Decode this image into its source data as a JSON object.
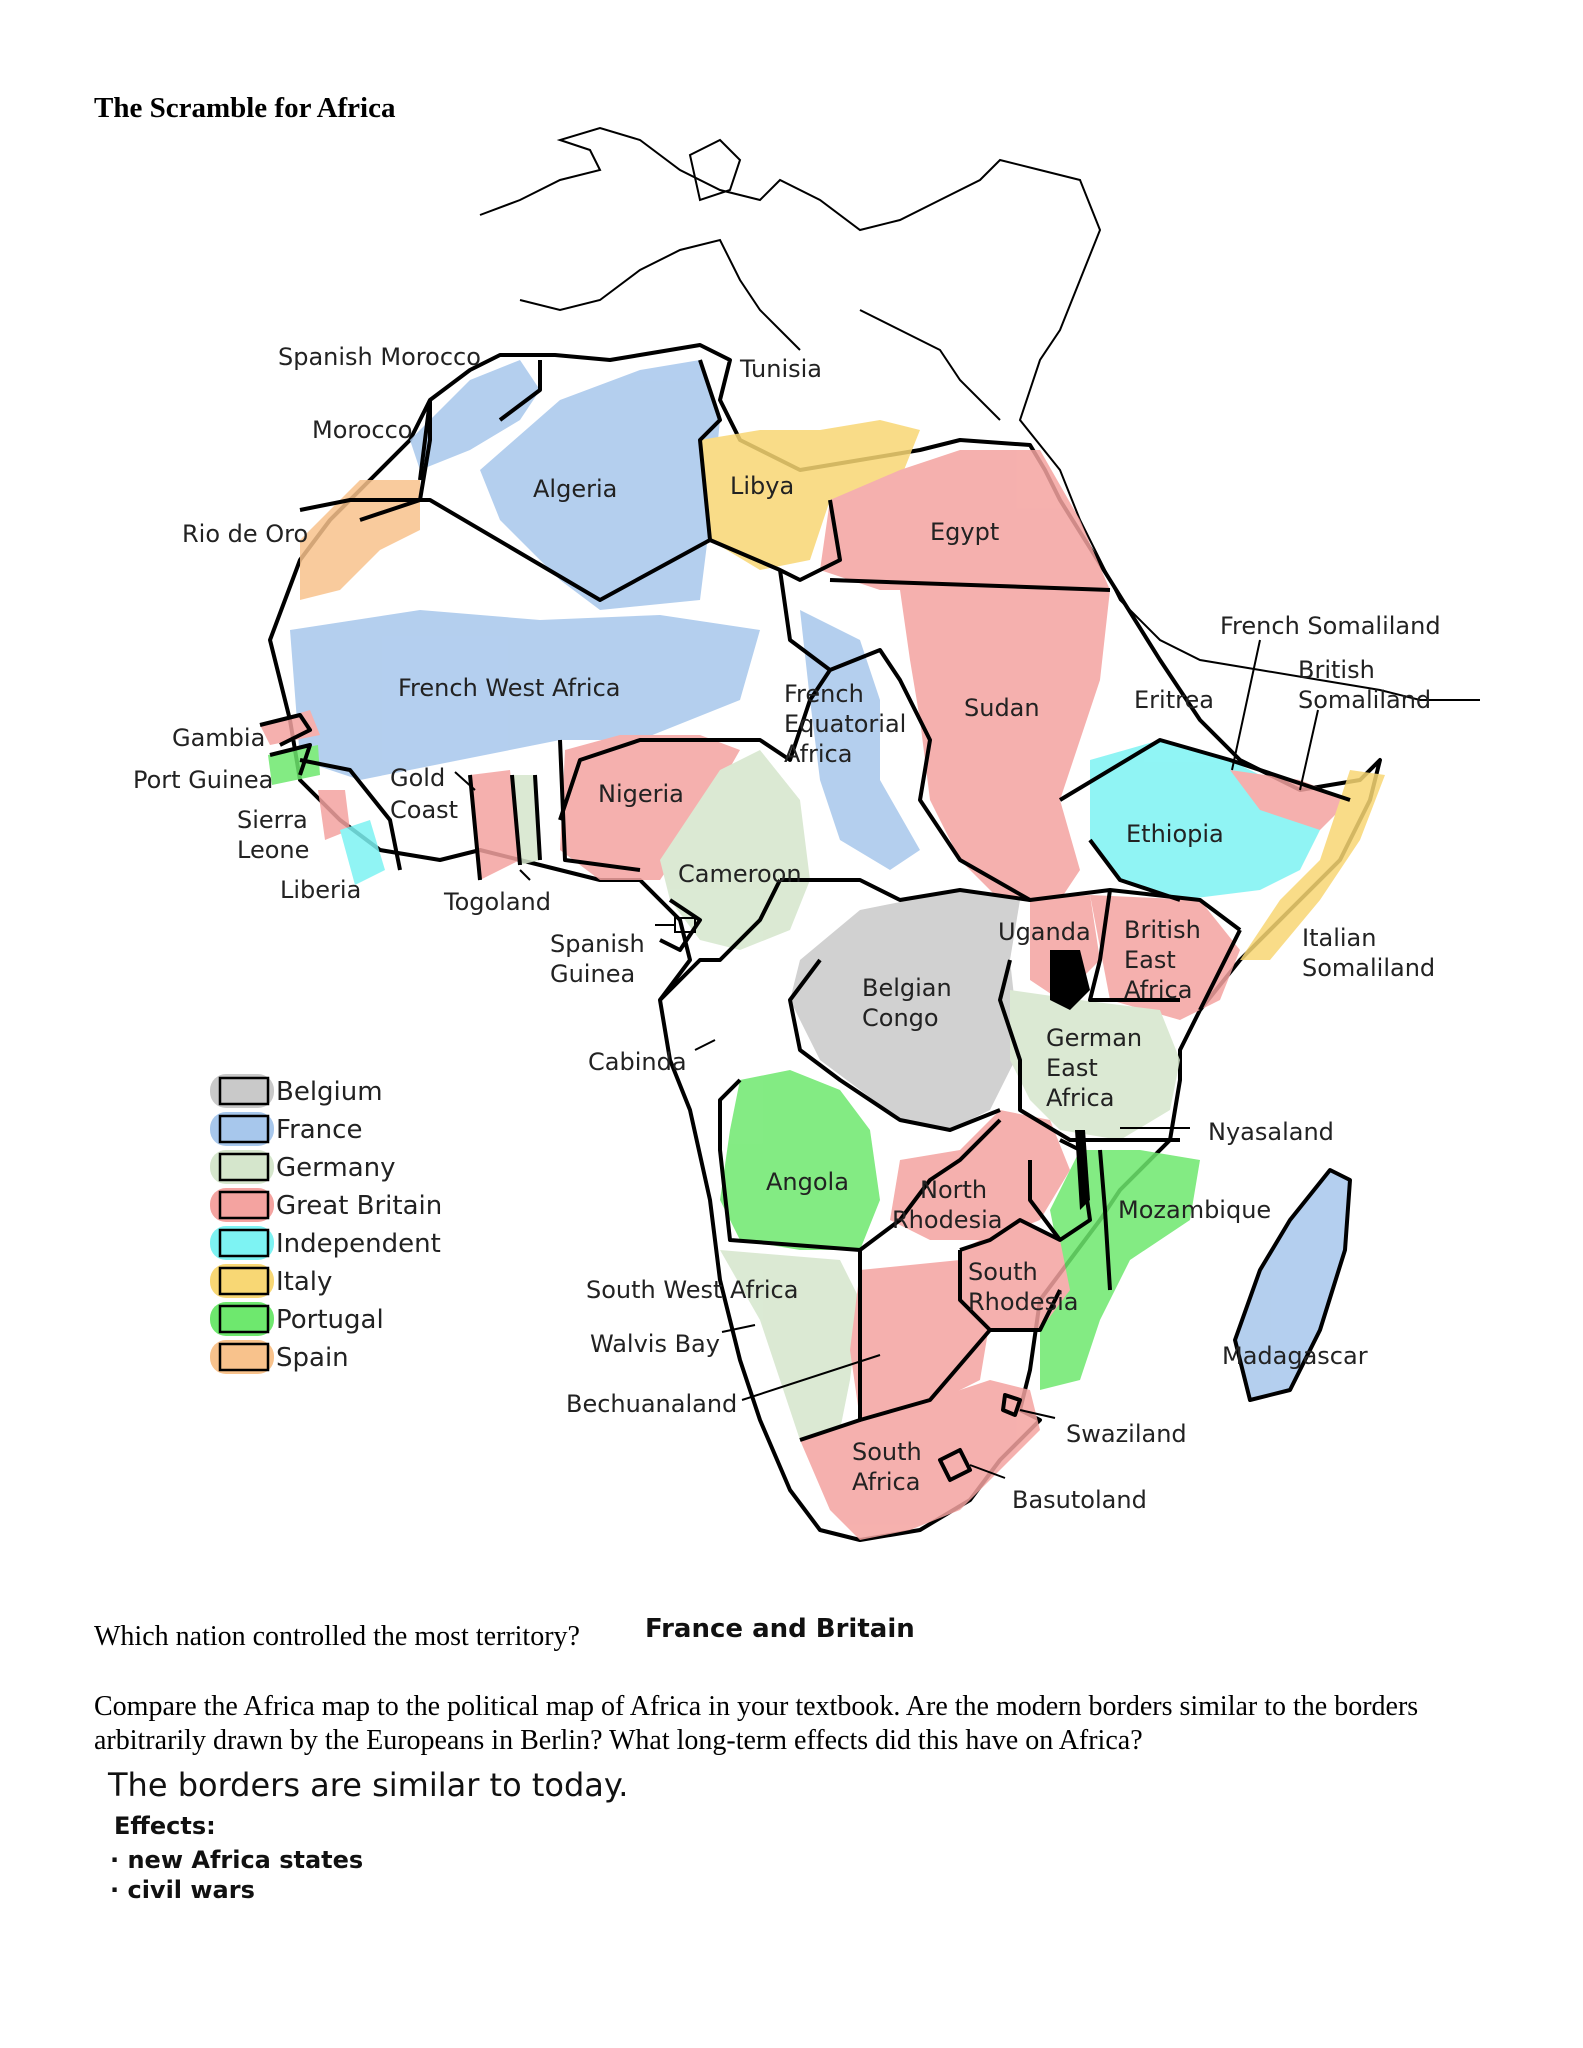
{
  "title": "The Scramble for Africa",
  "legend": [
    {
      "label": "Belgium",
      "color": "#c9c9c9"
    },
    {
      "label": "France",
      "color": "#a7c7ec"
    },
    {
      "label": "Germany",
      "color": "#d5e6cc"
    },
    {
      "label": "Great Britain",
      "color": "#f4a3a0"
    },
    {
      "label": "Independent",
      "color": "#7df3f3"
    },
    {
      "label": "Italy",
      "color": "#f8d774"
    },
    {
      "label": "Portugal",
      "color": "#6ee86e"
    },
    {
      "label": "Spain",
      "color": "#f8c28c"
    }
  ],
  "labels": {
    "spanish_morocco": "Spanish Morocco",
    "tunisia": "Tunisia",
    "morocco": "Morocco",
    "algeria": "Algeria",
    "libya": "Libya",
    "rio_de_oro": "Rio de Oro",
    "egypt": "Egypt",
    "french_somaliland": "French Somaliland",
    "british_somaliland_1": "British",
    "british_somaliland_2": "Somaliland",
    "french_west_africa": "French West Africa",
    "french_eq_1": "French",
    "french_eq_2": "Equatorial",
    "french_eq_3": "Africa",
    "sudan": "Sudan",
    "eritrea": "Eritrea",
    "gambia": "Gambia",
    "port_guinea": "Port Guinea",
    "gold_coast_1": "Gold",
    "gold_coast_2": "Coast",
    "nigeria": "Nigeria",
    "ethiopia": "Ethiopia",
    "sierra_leone_1": "Sierra",
    "sierra_leone_2": "Leone",
    "liberia": "Liberia",
    "togoland": "Togoland",
    "cameroon": "Cameroon",
    "spanish_guinea_1": "Spanish",
    "spanish_guinea_2": "Guinea",
    "uganda": "Uganda",
    "british_east_africa_1": "British",
    "british_east_africa_2": "East",
    "british_east_africa_3": "Africa",
    "italian_somaliland_1": "Italian",
    "italian_somaliland_2": "Somaliland",
    "belgian_congo_1": "Belgian",
    "belgian_congo_2": "Congo",
    "cabinda": "Cabinda",
    "german_east_africa_1": "German",
    "german_east_africa_2": "East",
    "german_east_africa_3": "Africa",
    "nyasaland": "Nyasaland",
    "angola": "Angola",
    "north_rhodesia_1": "North",
    "north_rhodesia_2": "Rhodesia",
    "mozambique": "Mozambique",
    "south_west_africa": "South West Africa",
    "south_rhodesia_1": "South",
    "south_rhodesia_2": "Rhodesia",
    "walvis_bay": "Walvis Bay",
    "madagascar": "Madagascar",
    "bechuanaland": "Bechuanaland",
    "swaziland": "Swaziland",
    "south_africa_1": "South",
    "south_africa_2": "Africa",
    "basutoland": "Basutoland"
  },
  "questions": {
    "q1": "Which nation controlled the most territory?",
    "q1_answer": "France and Britain",
    "q2": "Compare the Africa map to the political map of Africa in your textbook. Are the modern borders similar to the borders arbitrarily drawn by the Europeans in Berlin? What long-term effects did this have on Africa?",
    "q2_answer_1": "The borders are similar to today.",
    "q2_answer_2": "Effects:",
    "q2_answer_3": "· new Africa states",
    "q2_answer_4": "· civil wars"
  }
}
